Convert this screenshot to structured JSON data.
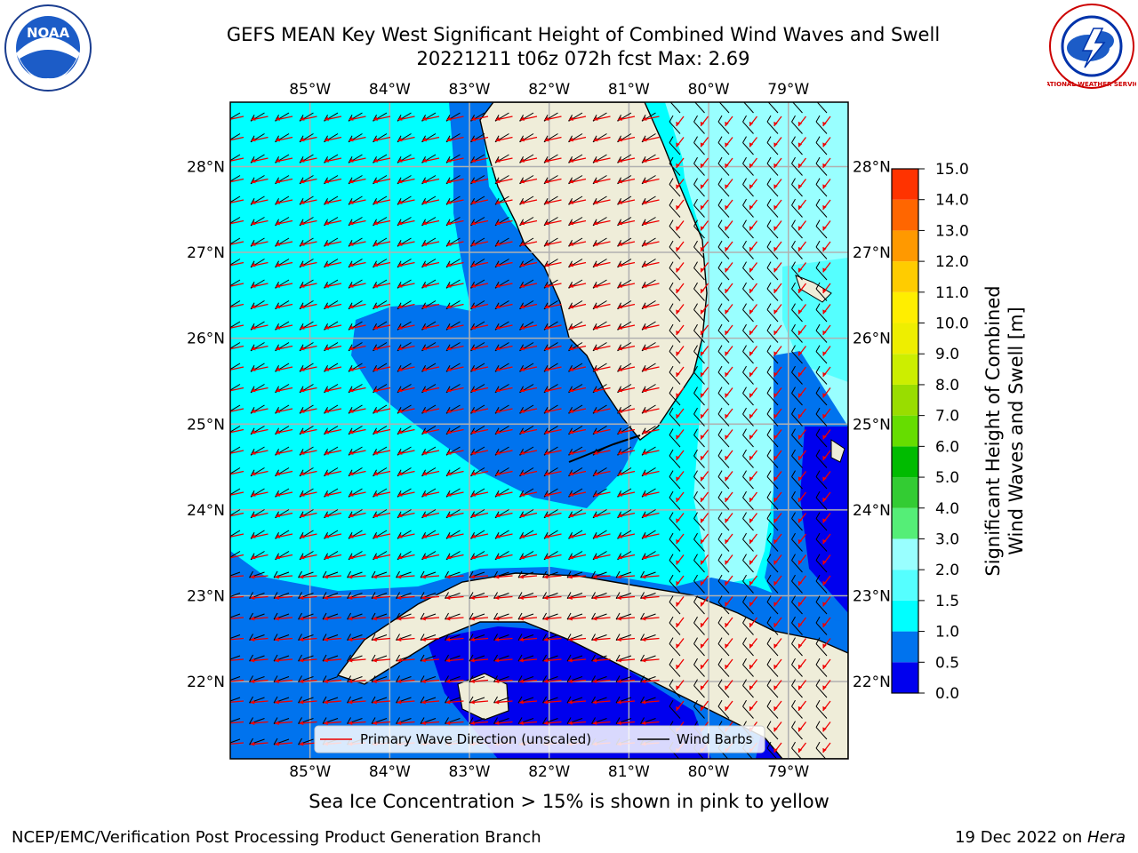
{
  "title": {
    "line1": "GEFS MEAN Key West Significant Height of Combined Wind Waves and Swell",
    "line2": "20221211 t06z 072h fcst   Max: 2.69"
  },
  "map": {
    "lon_labels": [
      "85°W",
      "84°W",
      "83°W",
      "82°W",
      "81°W",
      "80°W",
      "79°W"
    ],
    "lat_labels": [
      "28°N",
      "27°N",
      "26°N",
      "25°N",
      "24°N",
      "23°N",
      "22°N"
    ],
    "extent": {
      "lon_min": -86.0,
      "lon_max": -78.25,
      "lat_min": 21.1,
      "lat_max": 28.75
    }
  },
  "colorbar": {
    "label_line1": "Significant Height of Combined",
    "label_line2": "Wind Waves and Swell [m]",
    "ticks": [
      "0.0",
      "0.5",
      "1.0",
      "1.5",
      "2.0",
      "3.0",
      "4.0",
      "5.0",
      "6.0",
      "7.0",
      "8.0",
      "9.0",
      "10.0",
      "11.0",
      "12.0",
      "13.0",
      "14.0",
      "15.0"
    ],
    "colors": [
      "#0000ee",
      "#0073ee",
      "#00ffff",
      "#55ffff",
      "#99ffff",
      "#55ee77",
      "#33cc33",
      "#00bb00",
      "#66dd00",
      "#99dd00",
      "#ccee00",
      "#eeee00",
      "#ffee00",
      "#ffcc00",
      "#ff9900",
      "#ff6600",
      "#ff3300",
      "#ff0000"
    ]
  },
  "legend": {
    "wave": "Primary Wave Direction (unscaled)",
    "wind": "Wind Barbs"
  },
  "footer": {
    "ice_note": "Sea Ice Concentration > 15% is shown in pink to yellow",
    "credit": "NCEP/EMC/Verification Post Processing Product Generation Branch",
    "date_prefix": "19 Dec 2022 on ",
    "date_host": "Hera"
  },
  "logos": {
    "noaa": "NOAA",
    "nws": "NATIONAL WEATHER SERVICE"
  },
  "palette": {
    "land": "#efedd9",
    "ocean_mid": "#00ffff",
    "ocean_deep": "#0073ee",
    "ocean_low": "#0000ee",
    "ocean_high": "#99ffff",
    "arrow": "#ee0000",
    "grid": "#b0b0b0"
  }
}
